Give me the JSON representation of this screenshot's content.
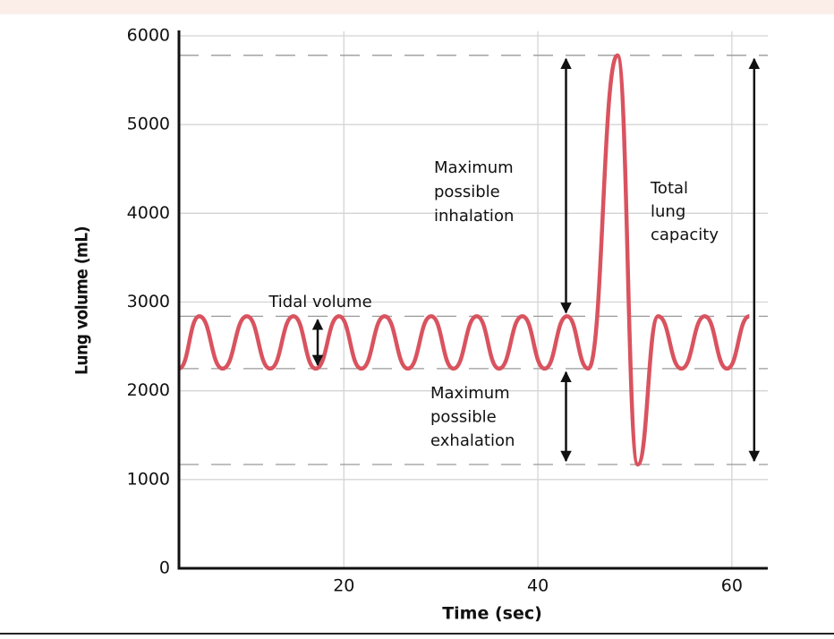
{
  "chart_data": {
    "type": "line",
    "x_label": "Time (sec)",
    "y_label": "Lung volume (mL)",
    "x": [
      3,
      5.1,
      7.5,
      10,
      12.4,
      14.8,
      17.1,
      19.5,
      21.8,
      24.2,
      26.6,
      29,
      31.3,
      33.7,
      36,
      38.4,
      40.7,
      43,
      45.2,
      48.2,
      50.3,
      52.4,
      54.8,
      57.2,
      59.5,
      61.8
    ],
    "series": [
      {
        "color": "#d9535f",
        "values": [
          2250,
          2840,
          2250,
          2840,
          2250,
          2840,
          2250,
          2840,
          2250,
          2840,
          2250,
          2840,
          2250,
          2840,
          2250,
          2840,
          2250,
          2840,
          2250,
          5780,
          1170,
          2840,
          2250,
          2840,
          2250,
          2840
        ]
      }
    ],
    "xlim": [
      3,
      63.7
    ],
    "ylim": [
      0,
      6000
    ],
    "xticks": [
      20,
      40,
      60
    ],
    "yticks": [
      0,
      1000,
      2000,
      3000,
      4000,
      5000,
      6000
    ],
    "grid": true,
    "reference_lines": [
      5780,
      2840,
      2250,
      1170
    ],
    "annotations": [
      {
        "text": [
          "Tidal volume"
        ],
        "x": 17.3,
        "from": 2250,
        "to": 2840
      },
      {
        "text": [
          "Maximum",
          "possible",
          "inhalation"
        ],
        "x": 42.9,
        "from": 2840,
        "to": 5780
      },
      {
        "text": [
          "Maximum",
          "possible",
          "exhalation"
        ],
        "x": 42.9,
        "from": 1170,
        "to": 2250
      },
      {
        "text": [
          "Total",
          "lung",
          "capacity"
        ],
        "x": 62.3,
        "from": 1170,
        "to": 5780
      }
    ]
  }
}
